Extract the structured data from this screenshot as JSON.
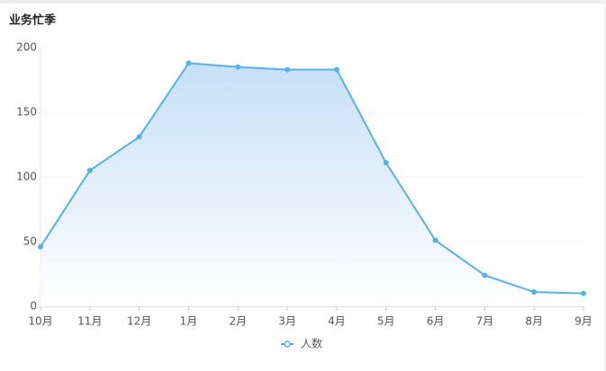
{
  "chart_data": {
    "type": "area",
    "title": "业务忙季",
    "categories": [
      "10月",
      "11月",
      "12月",
      "1月",
      "2月",
      "3月",
      "4月",
      "5月",
      "6月",
      "7月",
      "8月",
      "9月"
    ],
    "series": [
      {
        "name": "人数",
        "color": "#5aafe6",
        "values": [
          46,
          105,
          131,
          188,
          185,
          183,
          183,
          111,
          51,
          24,
          11,
          10
        ]
      }
    ],
    "ylim": [
      0,
      200
    ],
    "yticks": [
      0,
      50,
      100,
      150,
      200
    ],
    "grid": true,
    "legend": "bottom"
  }
}
